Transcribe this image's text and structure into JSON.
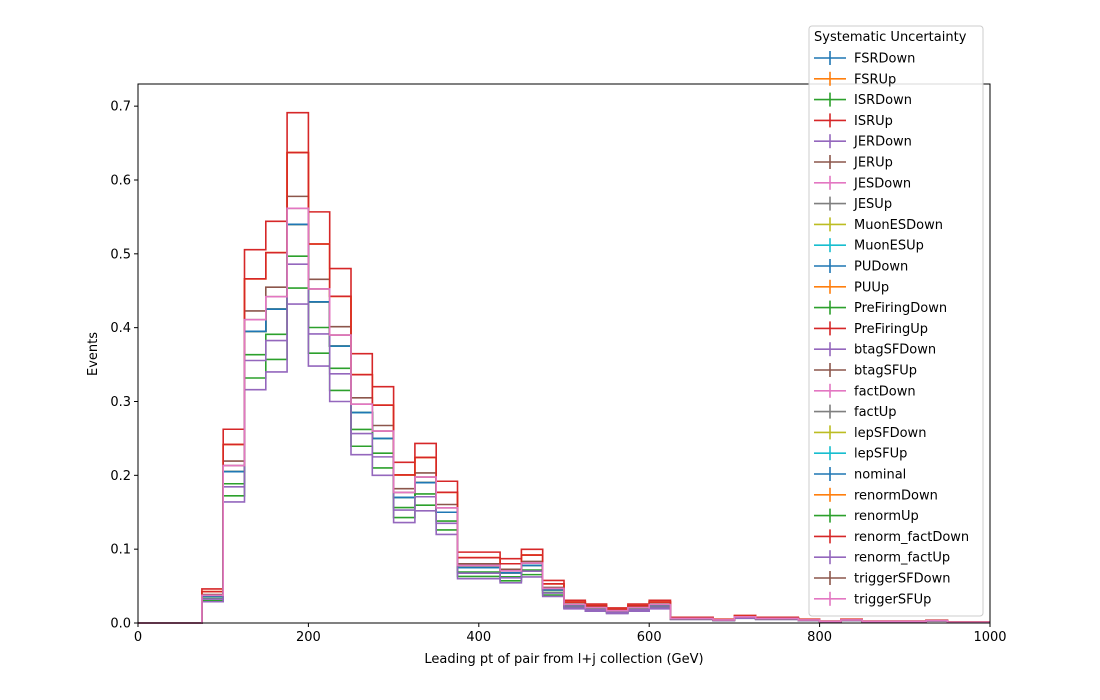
{
  "chart_data": {
    "type": "line",
    "style": "step histogram",
    "title": "",
    "xlabel": "Leading pt of pair from l+j collection (GeV)",
    "ylabel": "Events",
    "xlim": [
      0,
      1000
    ],
    "ylim": [
      0,
      0.73
    ],
    "x_ticks": [
      "0",
      "200",
      "400",
      "600",
      "800",
      "1000"
    ],
    "y_ticks": [
      "0.0",
      "0.1",
      "0.2",
      "0.3",
      "0.4",
      "0.5",
      "0.6",
      "0.7"
    ],
    "grid": false,
    "legend_title": "Systematic Uncertainty",
    "legend_position": "top-right, outside above axes",
    "bin_edges": [
      0,
      25,
      50,
      75,
      100,
      125,
      150,
      175,
      200,
      225,
      250,
      275,
      300,
      325,
      350,
      375,
      400,
      425,
      450,
      475,
      500,
      525,
      550,
      575,
      600,
      625,
      650,
      675,
      700,
      725,
      750,
      775,
      800,
      825,
      850,
      875,
      900,
      925,
      950,
      975,
      1000
    ],
    "nominal": [
      0,
      0,
      0,
      0.036,
      0.205,
      0.395,
      0.425,
      0.54,
      0.435,
      0.375,
      0.285,
      0.25,
      0.17,
      0.19,
      0.15,
      0.075,
      0.075,
      0.068,
      0.078,
      0.045,
      0.024,
      0.02,
      0.016,
      0.02,
      0.024,
      0.006,
      0.006,
      0.004,
      0.008,
      0.006,
      0.006,
      0.004,
      0.002,
      0.004,
      0.002,
      0.002,
      0.002,
      0.003,
      0.001,
      0.001
    ],
    "scales": [
      1.0,
      1.18,
      0.84,
      1.28,
      0.8,
      1.07,
      1.0,
      1.0,
      1.0,
      1.0,
      1.0,
      1.0,
      1.0,
      1.0,
      1.0,
      1.0,
      1.0,
      1.0,
      1.0,
      1.0,
      1.0,
      1.18,
      0.92,
      1.18,
      0.9,
      1.04,
      1.04
    ],
    "series": [
      {
        "name": "FSRDown",
        "color": "#1f77b4"
      },
      {
        "name": "FSRUp",
        "color": "#ff7f0e"
      },
      {
        "name": "ISRDown",
        "color": "#2ca02c"
      },
      {
        "name": "ISRUp",
        "color": "#d62728"
      },
      {
        "name": "JERDown",
        "color": "#9467bd"
      },
      {
        "name": "JERUp",
        "color": "#8c564b"
      },
      {
        "name": "JESDown",
        "color": "#e377c2"
      },
      {
        "name": "JESUp",
        "color": "#7f7f7f"
      },
      {
        "name": "MuonESDown",
        "color": "#bcbd22"
      },
      {
        "name": "MuonESUp",
        "color": "#17becf"
      },
      {
        "name": "PUDown",
        "color": "#1f77b4"
      },
      {
        "name": "PUUp",
        "color": "#ff7f0e"
      },
      {
        "name": "PreFiringDown",
        "color": "#2ca02c"
      },
      {
        "name": "PreFiringUp",
        "color": "#d62728"
      },
      {
        "name": "btagSFDown",
        "color": "#9467bd"
      },
      {
        "name": "btagSFUp",
        "color": "#8c564b"
      },
      {
        "name": "factDown",
        "color": "#e377c2"
      },
      {
        "name": "factUp",
        "color": "#7f7f7f"
      },
      {
        "name": "lepSFDown",
        "color": "#bcbd22"
      },
      {
        "name": "lepSFUp",
        "color": "#17becf"
      },
      {
        "name": "nominal",
        "color": "#1f77b4"
      },
      {
        "name": "renormDown",
        "color": "#ff7f0e"
      },
      {
        "name": "renormUp",
        "color": "#2ca02c"
      },
      {
        "name": "renorm_factDown",
        "color": "#d62728"
      },
      {
        "name": "renorm_factUp",
        "color": "#9467bd"
      },
      {
        "name": "triggerSFDown",
        "color": "#8c564b"
      },
      {
        "name": "triggerSFUp",
        "color": "#e377c2"
      }
    ]
  }
}
